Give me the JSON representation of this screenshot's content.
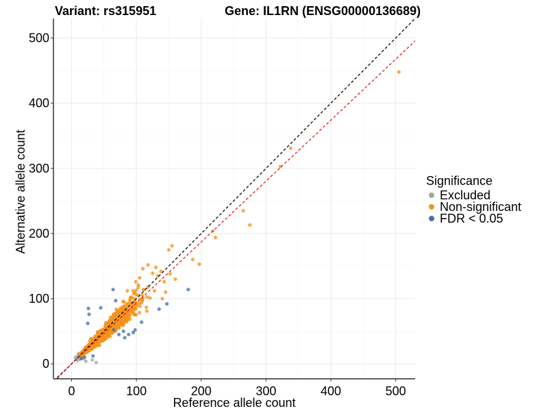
{
  "chart_data": {
    "type": "scatter",
    "title_left": "Variant: rs315951",
    "title_right": "Gene: IL1RN (ENSG00000136689)",
    "xlabel": "Reference allele count",
    "ylabel": "Alternative allele count",
    "xlim": [
      -28,
      530
    ],
    "ylim": [
      -23,
      530
    ],
    "xticks": [
      0,
      100,
      200,
      300,
      400,
      500
    ],
    "yticks": [
      0,
      100,
      200,
      300,
      400,
      500
    ],
    "grid": true,
    "legend": {
      "title": "Significance",
      "position": "right",
      "entries": [
        {
          "label": "Excluded",
          "color": "#a6a6a6"
        },
        {
          "label": "Non-significant",
          "color": "#f5921e"
        },
        {
          "label": "FDR < 0.05",
          "color": "#4472a8"
        }
      ]
    },
    "reference_lines": [
      {
        "name": "identity-line",
        "slope": 1.0,
        "intercept": 0,
        "color": "#000000",
        "style": "dashed"
      },
      {
        "name": "fit-line",
        "slope": 0.935,
        "intercept": 0,
        "color": "#e41a1c",
        "style": "dashed"
      }
    ],
    "cluster": {
      "series": "Non-significant",
      "count": 1400,
      "seed": 7,
      "slope": 0.92,
      "x_range": [
        13,
        120
      ],
      "x_mean": 48,
      "x_sd": 22,
      "log_sd": 0.1
    },
    "series": [
      {
        "name": "Excluded",
        "color": "#a6a6a6",
        "points": [
          [
            8,
            9
          ],
          [
            10,
            12
          ],
          [
            9,
            5
          ],
          [
            12,
            10
          ],
          [
            14,
            11
          ],
          [
            10,
            14
          ],
          [
            18,
            8
          ],
          [
            7,
            7
          ],
          [
            12,
            7
          ],
          [
            15,
            13
          ],
          [
            22,
            4
          ],
          [
            38,
            2
          ],
          [
            32,
            6
          ],
          [
            11,
            16
          ],
          [
            6,
            10
          ],
          [
            13,
            9
          ]
        ]
      },
      {
        "name": "Non-significant",
        "color": "#f5921e",
        "points": [
          [
            505,
            448
          ],
          [
            338,
            331
          ],
          [
            322,
            303
          ],
          [
            265,
            235
          ],
          [
            275,
            213
          ],
          [
            218,
            204
          ],
          [
            222,
            194
          ],
          [
            187,
            160
          ],
          [
            197,
            153
          ],
          [
            150,
            175
          ],
          [
            155,
            181
          ],
          [
            138,
            142
          ],
          [
            143,
            126
          ],
          [
            160,
            130
          ],
          [
            152,
            138
          ],
          [
            133,
            135
          ],
          [
            125,
            139
          ],
          [
            145,
            110
          ],
          [
            118,
            152
          ],
          [
            110,
            146
          ],
          [
            105,
            132
          ],
          [
            112,
            114
          ],
          [
            128,
            112
          ],
          [
            103,
            121
          ],
          [
            121,
            101
          ],
          [
            99,
            126
          ],
          [
            130,
            148
          ],
          [
            108,
            94
          ],
          [
            95,
            112
          ],
          [
            140,
            100
          ],
          [
            118,
            118
          ],
          [
            100,
            106
          ],
          [
            86,
            112
          ],
          [
            92,
            102
          ]
        ]
      },
      {
        "name": "FDR < 0.05",
        "color": "#4472a8",
        "points": [
          [
            180,
            114
          ],
          [
            135,
            84
          ],
          [
            147,
            92
          ],
          [
            108,
            64
          ],
          [
            95,
            48
          ],
          [
            82,
            40
          ],
          [
            88,
            45
          ],
          [
            98,
            52
          ],
          [
            68,
            97
          ],
          [
            27,
            76
          ],
          [
            26,
            85
          ],
          [
            45,
            86
          ],
          [
            25,
            62
          ],
          [
            64,
            114
          ],
          [
            65,
            52
          ],
          [
            73,
            45
          ],
          [
            80,
            50
          ],
          [
            33,
            12
          ],
          [
            20,
            10
          ],
          [
            15,
            8
          ]
        ]
      }
    ]
  }
}
